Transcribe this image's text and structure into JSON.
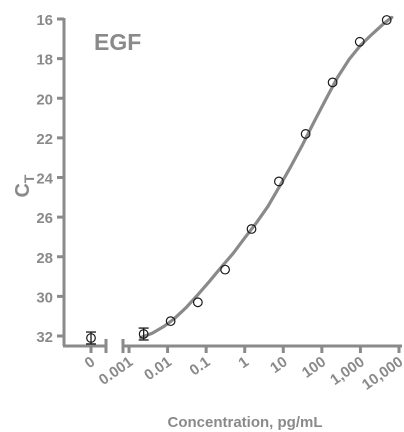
{
  "chart_data": {
    "type": "scatter",
    "title": "EGF",
    "xlabel": "Concentration, pg/mL",
    "ylabel": {
      "main": "C",
      "sub": "T"
    },
    "x_scale": "log",
    "x_zero_category": "0",
    "x_tick_labels": [
      "0.001",
      "0.01",
      "0.1",
      "1",
      "10",
      "100",
      "1,000",
      "10,000"
    ],
    "x_tick_values": [
      0.001,
      0.01,
      0.1,
      1,
      10,
      100,
      1000,
      10000
    ],
    "xlim": [
      0.001,
      10000
    ],
    "y_inverted": true,
    "ylim": [
      32.7,
      15.9
    ],
    "y_ticks": [
      16,
      18,
      20,
      22,
      24,
      26,
      28,
      30,
      32
    ],
    "grid": false,
    "zero_point": {
      "x": 0,
      "y": 32.1,
      "err": 0.3
    },
    "series": [
      {
        "x": [
          0.0024,
          0.012,
          0.061,
          0.31,
          1.5,
          7.7,
          38,
          190,
          960,
          4800
        ],
        "y": [
          31.9,
          31.25,
          30.3,
          28.65,
          26.6,
          24.2,
          21.8,
          19.2,
          17.15,
          16.05
        ],
        "err": [
          0.3,
          0,
          0,
          0,
          0,
          0,
          0,
          0,
          0,
          0
        ]
      }
    ],
    "fit_curve": {
      "x": [
        0.002,
        0.004,
        0.008,
        0.015,
        0.03,
        0.06,
        0.12,
        0.25,
        0.5,
        1,
        2,
        4,
        8,
        16,
        32,
        64,
        128,
        256,
        512,
        1024,
        2048,
        4096,
        6500
      ],
      "y": [
        32.08,
        31.86,
        31.52,
        31.12,
        30.57,
        29.93,
        29.26,
        28.51,
        27.83,
        27.05,
        26.29,
        25.46,
        24.45,
        23.41,
        22.32,
        21.16,
        20.04,
        18.94,
        18.03,
        17.31,
        16.75,
        16.22,
        15.92
      ]
    },
    "colors": {
      "axis": "#8a8a8a",
      "curve": "#8a8a8a",
      "marker_stroke": "#1a1a1a",
      "marker_fill": "#ffffff",
      "text": "#8a8a8a"
    }
  }
}
